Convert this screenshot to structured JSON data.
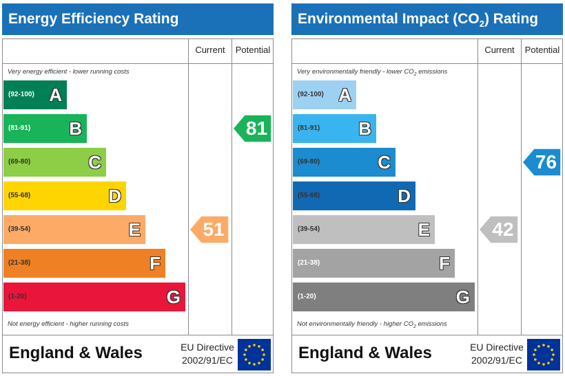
{
  "chart_data": [
    {
      "type": "bar",
      "title": "Energy Efficiency Rating",
      "columns": [
        "Current",
        "Potential"
      ],
      "top_note": "Very energy efficient - lower running costs",
      "bottom_note": "Not energy efficient - higher running costs",
      "bands": [
        {
          "range": "(92-100)",
          "letter": "A",
          "color": "#008054",
          "range_color": "#ffffff"
        },
        {
          "range": "(81-91)",
          "letter": "B",
          "color": "#19b459",
          "range_color": "#ffffff"
        },
        {
          "range": "(69-80)",
          "letter": "C",
          "color": "#8dce46",
          "range_color": "#333333"
        },
        {
          "range": "(55-68)",
          "letter": "D",
          "color": "#ffd500",
          "range_color": "#333333"
        },
        {
          "range": "(39-54)",
          "letter": "E",
          "color": "#fcaa65",
          "range_color": "#333333"
        },
        {
          "range": "(21-38)",
          "letter": "F",
          "color": "#ef8023",
          "range_color": "#333333"
        },
        {
          "range": "(1-20)",
          "letter": "G",
          "color": "#e9153b",
          "range_color": "#333333"
        }
      ],
      "current": {
        "value": 51,
        "band": "E",
        "color": "#fcaa65"
      },
      "potential": {
        "value": 81,
        "band": "B",
        "color": "#19b459"
      }
    },
    {
      "type": "bar",
      "title": "Environmental Impact (CO",
      "title_sub": "2",
      "title_end": ") Rating",
      "columns": [
        "Current",
        "Potential"
      ],
      "top_note": "Very environmentally friendly - lower CO",
      "top_note_sub": "2",
      "top_note_end": " emissions",
      "bottom_note": "Not environmentally friendly - higher CO",
      "bottom_note_sub": "2",
      "bottom_note_end": " emissions",
      "bands": [
        {
          "range": "(92-100)",
          "letter": "A",
          "color": "#9dd1f2",
          "range_color": "#333333"
        },
        {
          "range": "(81-91)",
          "letter": "B",
          "color": "#3ab4ee",
          "range_color": "#333333"
        },
        {
          "range": "(69-80)",
          "letter": "C",
          "color": "#1a8ccf",
          "range_color": "#333333"
        },
        {
          "range": "(55-68)",
          "letter": "D",
          "color": "#1269b3",
          "range_color": "#333333"
        },
        {
          "range": "(39-54)",
          "letter": "E",
          "color": "#bfbfbf",
          "range_color": "#333333"
        },
        {
          "range": "(21-38)",
          "letter": "F",
          "color": "#a3a3a3",
          "range_color": "#ffffff"
        },
        {
          "range": "(1-20)",
          "letter": "G",
          "color": "#7f7f7f",
          "range_color": "#ffffff"
        }
      ],
      "current": {
        "value": 42,
        "band": "E",
        "color": "#bfbfbf"
      },
      "potential": {
        "value": 76,
        "band": "C",
        "color": "#1a8ccf"
      }
    }
  ],
  "footer": {
    "country": "England & Wales",
    "directive_line1": "EU Directive",
    "directive_line2": "2002/91/EC",
    "flag_icon": "eu-flag-icon",
    "flag_colors": {
      "background": "#003399",
      "stars": "#ffcc00"
    }
  }
}
